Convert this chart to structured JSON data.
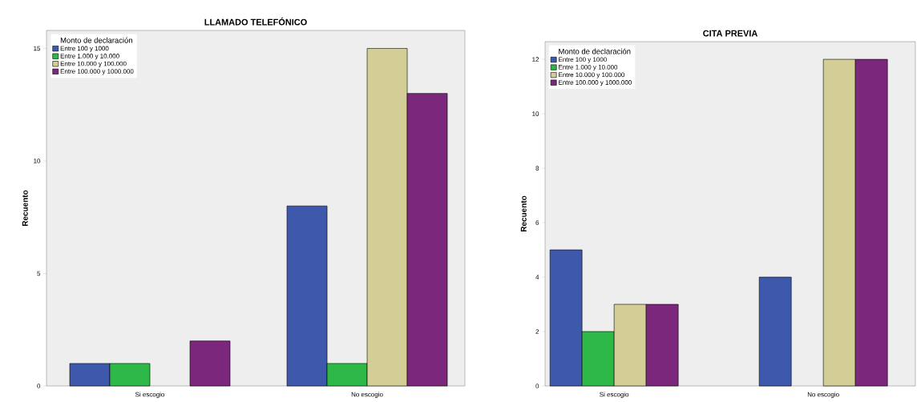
{
  "chart_data": [
    {
      "type": "bar",
      "title": "LLAMADO TELEFÓNICO",
      "ylabel": "Recuento",
      "legend_title": "Monto de declaración",
      "legend": "top left",
      "categories": [
        "Si escogio",
        "No escogio"
      ],
      "ylim": [
        0,
        15.8
      ],
      "yticks": [
        0,
        5,
        10,
        15
      ],
      "series": [
        {
          "name": "Entre 100 y 1000",
          "color": "#3e58ac",
          "values": [
            1,
            8
          ]
        },
        {
          "name": "Entre 1.000  y 10.000",
          "color": "#2eb848",
          "values": [
            1,
            1
          ]
        },
        {
          "name": "Entre 10.000 y 100.000",
          "color": "#d2ce96",
          "values": [
            null,
            15
          ]
        },
        {
          "name": "Entre 100.000 y 1000.000",
          "color": "#7b287c",
          "values": [
            2,
            13
          ]
        }
      ]
    },
    {
      "type": "bar",
      "title": "CITA PREVIA",
      "ylabel": "Recuento",
      "legend_title": "Monto de declaración",
      "legend": "top left",
      "categories": [
        "Si escogio",
        "No escogio"
      ],
      "ylim": [
        0,
        12.65
      ],
      "yticks": [
        0,
        2,
        4,
        6,
        8,
        10,
        12
      ],
      "series": [
        {
          "name": "Entre 100 y 1000",
          "color": "#3e58ac",
          "values": [
            5,
            4
          ]
        },
        {
          "name": "Entre 1.000  y 10.000",
          "color": "#2eb848",
          "values": [
            2,
            null
          ]
        },
        {
          "name": "Entre 10.000 y 100.000",
          "color": "#d2ce96",
          "values": [
            3,
            12
          ]
        },
        {
          "name": "Entre 100.000 y 1000.000",
          "color": "#7b287c",
          "values": [
            3,
            12
          ]
        }
      ]
    }
  ]
}
